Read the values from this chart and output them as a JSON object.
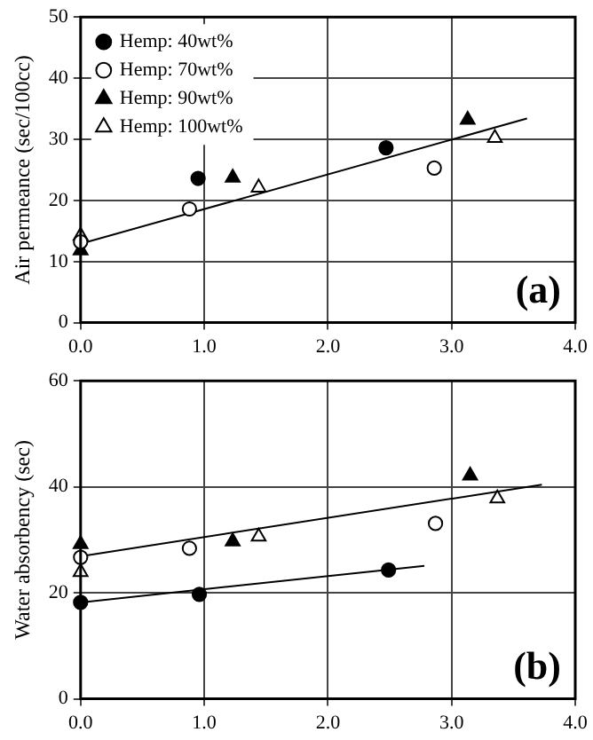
{
  "chart_data": [
    {
      "type": "scatter",
      "ylabel": "Air permeance (sec/100cc)",
      "xlim": [
        0,
        4
      ],
      "xticks": [
        {
          "value": 0,
          "label": "0.0"
        },
        {
          "value": 1,
          "label": "1.0"
        },
        {
          "value": 2,
          "label": "2.0"
        },
        {
          "value": 3,
          "label": "3.0"
        },
        {
          "value": 4,
          "label": "4.0"
        }
      ],
      "ylim": [
        0,
        50
      ],
      "yticks": [
        0,
        10,
        20,
        30,
        40,
        50
      ],
      "grid": true,
      "legend": "top left",
      "annotations": [
        "(a)"
      ],
      "series": [
        {
          "name": "Hemp: 40wt%",
          "color": "#000000",
          "marker": "circle",
          "x": [
            0.95,
            2.47
          ],
          "values": [
            23.6,
            28.6
          ]
        },
        {
          "name": "Hemp: 70wt%",
          "color": "#ffffff",
          "marker": "circle",
          "x": [
            0,
            0.88,
            2.86
          ],
          "values": [
            13.2,
            18.6,
            25.3
          ]
        },
        {
          "name": "Hemp: 90wt%",
          "color": "#000000",
          "marker": "triangle",
          "x": [
            0,
            1.23,
            3.13
          ],
          "values": [
            11.8,
            23.7,
            33.2
          ]
        },
        {
          "name": "Hemp: 100wt%",
          "color": "#ffffff",
          "marker": "triangle",
          "x": [
            0,
            1.44,
            3.35
          ],
          "values": [
            14.2,
            22.1,
            30.2
          ]
        },
        {
          "type": "line",
          "color": "#000000",
          "marker": "none",
          "x": [
            0,
            3.61
          ],
          "values": [
            12.9,
            33.4
          ]
        }
      ]
    },
    {
      "type": "scatter",
      "ylabel": "Water absorbency (sec)",
      "xlim": [
        0,
        4
      ],
      "xticks": [
        {
          "value": 0,
          "label": "0.0"
        },
        {
          "value": 1,
          "label": "1.0"
        },
        {
          "value": 2,
          "label": "2.0"
        },
        {
          "value": 3,
          "label": "3.0"
        },
        {
          "value": 4,
          "label": "4.0"
        }
      ],
      "ylim": [
        0,
        60
      ],
      "yticks": [
        0,
        20,
        40,
        60
      ],
      "grid": true,
      "annotations": [
        "(b)"
      ],
      "series": [
        {
          "color": "#000000",
          "marker": "circle",
          "x": [
            0,
            0.96,
            2.49
          ],
          "values": [
            18.2,
            19.7,
            24.3
          ]
        },
        {
          "color": "#ffffff",
          "marker": "circle",
          "x": [
            0,
            0.88,
            2.87
          ],
          "values": [
            26.7,
            28.4,
            33.1
          ]
        },
        {
          "color": "#000000",
          "marker": "triangle",
          "x": [
            0,
            1.23,
            3.15
          ],
          "values": [
            29.2,
            29.7,
            42.1
          ]
        },
        {
          "color": "#ffffff",
          "marker": "triangle",
          "x": [
            0,
            1.44,
            3.37
          ],
          "values": [
            23.9,
            30.6,
            37.8
          ]
        },
        {
          "type": "line",
          "color": "#000000",
          "marker": "none",
          "x": [
            0,
            3.73
          ],
          "values": [
            26.9,
            40.4
          ]
        },
        {
          "type": "line",
          "color": "#000000",
          "marker": "none",
          "x": [
            0,
            2.78
          ],
          "values": [
            18.2,
            25.1
          ]
        }
      ]
    }
  ]
}
